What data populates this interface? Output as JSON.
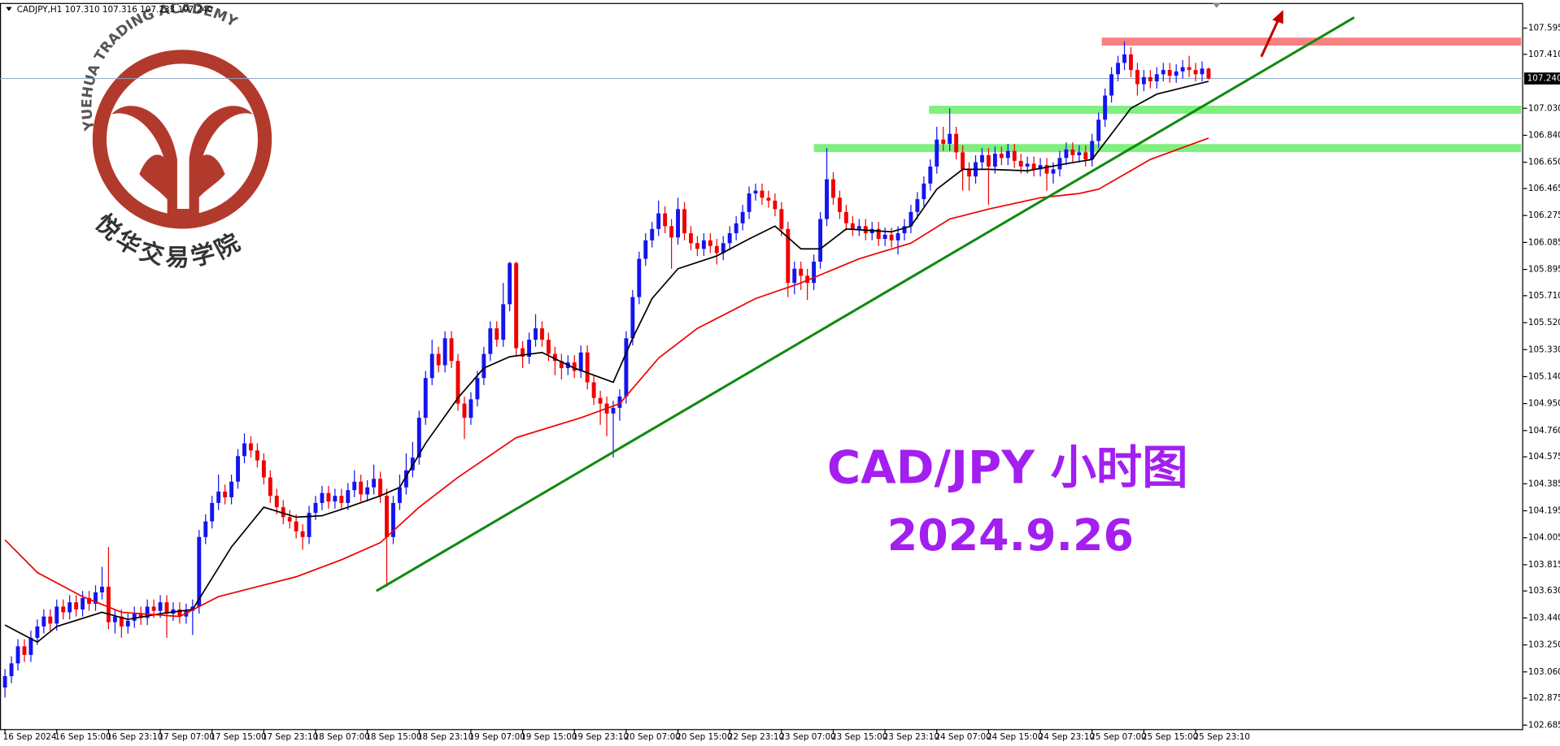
{
  "chart_data": {
    "type": "candlestick",
    "header": "CADJPY,H1  107.310 107.316 107.233 107.240",
    "watermark_en": "YUEHUA TRADING ACADEMY",
    "watermark_cn": "悦华交易学院",
    "annotations": [
      "CAD/JPY 小时图",
      "2024.9.26"
    ],
    "annotation_color": "#a31ff0",
    "up_color": "#1414f0",
    "down_color": "#f00000",
    "categories": [
      "16 Sep 2024",
      null,
      null,
      null,
      null,
      null,
      null,
      null,
      "16 Sep 15:00",
      null,
      null,
      null,
      null,
      null,
      null,
      null,
      "16 Sep 23:10",
      null,
      null,
      null,
      null,
      null,
      null,
      null,
      "17 Sep 07:00",
      null,
      null,
      null,
      null,
      null,
      null,
      null,
      "17 Sep 15:00",
      null,
      null,
      null,
      null,
      null,
      null,
      null,
      "17 Sep 23:10",
      null,
      null,
      null,
      null,
      null,
      null,
      null,
      "18 Sep 07:00",
      null,
      null,
      null,
      null,
      null,
      null,
      null,
      "18 Sep 15:00",
      null,
      null,
      null,
      null,
      null,
      null,
      null,
      "18 Sep 23:10",
      null,
      null,
      null,
      null,
      null,
      null,
      null,
      "19 Sep 07:00",
      null,
      null,
      null,
      null,
      null,
      null,
      null,
      "19 Sep 15:00",
      null,
      null,
      null,
      null,
      null,
      null,
      null,
      "19 Sep 23:10",
      null,
      null,
      null,
      null,
      null,
      null,
      null,
      "20 Sep 07:00",
      null,
      null,
      null,
      null,
      null,
      null,
      null,
      "20 Sep 15:00",
      null,
      null,
      null,
      null,
      null,
      null,
      null,
      "22 Sep 23:10",
      null,
      null,
      null,
      null,
      null,
      null,
      null,
      "23 Sep 07:00",
      null,
      null,
      null,
      null,
      null,
      null,
      null,
      "23 Sep 15:00",
      null,
      null,
      null,
      null,
      null,
      null,
      null,
      "23 Sep 23:10",
      null,
      null,
      null,
      null,
      null,
      null,
      null,
      "24 Sep 07:00",
      null,
      null,
      null,
      null,
      null,
      null,
      null,
      "24 Sep 15:00",
      null,
      null,
      null,
      null,
      null,
      null,
      null,
      "24 Sep 23:10",
      null,
      null,
      null,
      null,
      null,
      null,
      null,
      "25 Sep 07:00",
      null,
      null,
      null,
      null,
      null,
      null,
      null,
      "25 Sep 15:00",
      null,
      null,
      null,
      null,
      null,
      null,
      null,
      "25 Sep 23:10",
      null,
      null
    ],
    "open": [
      102.95,
      103.03,
      103.12,
      103.24,
      103.18,
      103.3,
      103.38,
      103.45,
      103.4,
      103.52,
      103.48,
      103.55,
      103.5,
      103.58,
      103.54,
      103.62,
      103.66,
      103.41,
      103.45,
      103.38,
      103.42,
      103.47,
      103.44,
      103.52,
      103.49,
      103.55,
      103.47,
      103.5,
      103.45,
      103.49,
      103.52,
      104.01,
      104.12,
      104.25,
      104.33,
      104.29,
      104.4,
      104.58,
      104.67,
      104.62,
      104.55,
      104.43,
      104.3,
      104.22,
      104.15,
      104.12,
      104.05,
      104.01,
      104.18,
      104.25,
      104.32,
      104.26,
      104.3,
      104.25,
      104.34,
      104.4,
      104.31,
      104.36,
      104.42,
      104.3,
      104.01,
      104.25,
      104.36,
      104.48,
      104.57,
      104.85,
      105.13,
      105.3,
      105.22,
      105.41,
      105.25,
      104.95,
      104.85,
      104.98,
      105.13,
      105.3,
      105.48,
      105.4,
      105.65,
      105.94,
      105.34,
      105.28,
      105.4,
      105.48,
      105.4,
      105.3,
      105.25,
      105.2,
      105.24,
      105.18,
      105.31,
      105.1,
      104.99,
      104.95,
      104.88,
      104.92,
      105.0,
      105.41,
      105.7,
      105.97,
      106.1,
      106.18,
      106.29,
      106.2,
      106.12,
      106.32,
      106.15,
      106.08,
      106.04,
      106.1,
      106.06,
      106.01,
      106.08,
      106.15,
      106.22,
      106.3,
      106.43,
      106.45,
      106.4,
      106.38,
      106.32,
      106.18,
      105.8,
      105.9,
      105.85,
      105.8,
      105.95,
      106.25,
      106.53,
      106.4,
      106.3,
      106.22,
      106.18,
      106.2,
      106.15,
      106.18,
      106.11,
      106.14,
      106.1,
      106.15,
      106.2,
      106.3,
      106.39,
      106.5,
      106.62,
      106.81,
      106.78,
      106.85,
      106.72,
      106.6,
      106.55,
      106.65,
      106.7,
      106.62,
      106.71,
      106.68,
      106.73,
      106.66,
      106.62,
      106.64,
      106.6,
      106.63,
      106.57,
      106.6,
      106.68,
      106.74,
      106.7,
      106.72,
      106.67,
      106.8,
      106.95,
      107.12,
      107.27,
      107.35,
      107.41,
      107.3,
      107.2,
      107.25,
      107.22,
      107.27,
      107.3,
      107.26,
      107.29,
      107.32,
      107.3,
      107.27,
      107.31
    ],
    "high": [
      103.08,
      103.17,
      103.29,
      103.29,
      103.35,
      103.43,
      103.5,
      103.5,
      103.57,
      103.57,
      103.6,
      103.6,
      103.63,
      103.63,
      103.67,
      103.8,
      103.94,
      103.5,
      103.5,
      103.47,
      103.52,
      103.52,
      103.57,
      103.57,
      103.6,
      103.6,
      103.55,
      103.55,
      103.54,
      103.57,
      104.06,
      104.17,
      104.3,
      104.45,
      104.38,
      104.45,
      104.63,
      104.74,
      104.72,
      104.67,
      104.6,
      104.48,
      104.35,
      104.27,
      104.2,
      104.17,
      104.1,
      104.23,
      104.3,
      104.37,
      104.37,
      104.35,
      104.35,
      104.39,
      104.48,
      104.45,
      104.41,
      104.52,
      104.47,
      104.35,
      104.3,
      104.45,
      104.6,
      104.68,
      104.9,
      105.18,
      105.4,
      105.35,
      105.46,
      105.46,
      105.3,
      105.0,
      105.03,
      105.18,
      105.35,
      105.53,
      105.53,
      105.8,
      105.95,
      105.95,
      105.39,
      105.45,
      105.58,
      105.53,
      105.45,
      105.35,
      105.3,
      105.29,
      105.29,
      105.36,
      105.36,
      105.15,
      105.04,
      105.0,
      104.97,
      105.05,
      105.46,
      105.75,
      106.02,
      106.15,
      106.23,
      106.38,
      106.34,
      106.25,
      106.4,
      106.37,
      106.2,
      106.13,
      106.15,
      106.15,
      106.11,
      106.13,
      106.2,
      106.27,
      106.35,
      106.48,
      106.5,
      106.5,
      106.45,
      106.43,
      106.37,
      106.23,
      105.95,
      105.95,
      105.9,
      106.0,
      106.3,
      106.75,
      106.58,
      106.45,
      106.35,
      106.27,
      106.25,
      106.25,
      106.23,
      106.23,
      106.19,
      106.19,
      106.2,
      106.25,
      106.35,
      106.44,
      106.55,
      106.67,
      106.9,
      106.9,
      107.03,
      106.9,
      106.77,
      106.65,
      106.7,
      106.75,
      106.75,
      106.76,
      106.76,
      106.78,
      106.78,
      106.71,
      106.69,
      106.69,
      106.68,
      106.68,
      106.65,
      106.73,
      106.79,
      106.79,
      106.77,
      106.77,
      106.85,
      107.0,
      107.17,
      107.32,
      107.4,
      107.5,
      107.46,
      107.35,
      107.3,
      107.3,
      107.32,
      107.35,
      107.35,
      107.34,
      107.37,
      107.4,
      107.35,
      107.36,
      107.316
    ],
    "low": [
      102.88,
      102.98,
      103.07,
      103.13,
      103.13,
      103.25,
      103.33,
      103.35,
      103.35,
      103.43,
      103.43,
      103.45,
      103.45,
      103.49,
      103.49,
      103.57,
      103.36,
      103.33,
      103.3,
      103.33,
      103.37,
      103.39,
      103.39,
      103.44,
      103.44,
      103.3,
      103.42,
      103.4,
      103.4,
      103.32,
      103.47,
      103.96,
      104.07,
      104.2,
      104.24,
      104.24,
      104.35,
      104.53,
      104.57,
      104.5,
      104.38,
      104.25,
      104.17,
      104.1,
      104.07,
      104.0,
      103.92,
      103.96,
      104.13,
      104.2,
      104.21,
      104.21,
      104.2,
      104.2,
      104.29,
      104.26,
      104.26,
      104.31,
      104.25,
      103.66,
      103.96,
      104.2,
      104.31,
      104.43,
      104.52,
      104.8,
      105.08,
      105.17,
      105.17,
      105.2,
      104.9,
      104.7,
      104.8,
      104.93,
      105.08,
      105.25,
      105.35,
      105.35,
      105.6,
      105.29,
      105.2,
      105.23,
      105.35,
      105.35,
      105.25,
      105.15,
      105.12,
      105.15,
      105.13,
      105.13,
      105.05,
      104.94,
      104.8,
      104.72,
      104.57,
      104.83,
      104.95,
      105.36,
      105.65,
      105.92,
      106.05,
      106.13,
      106.15,
      105.9,
      106.07,
      106.1,
      106.03,
      105.99,
      105.99,
      106.01,
      105.93,
      105.96,
      106.03,
      106.1,
      106.17,
      106.25,
      106.38,
      106.35,
      106.33,
      106.27,
      106.13,
      105.7,
      105.72,
      105.75,
      105.68,
      105.75,
      105.9,
      106.2,
      106.35,
      106.25,
      106.17,
      106.13,
      106.13,
      106.1,
      106.1,
      106.06,
      106.06,
      106.05,
      106.0,
      106.1,
      106.15,
      106.25,
      106.34,
      106.45,
      106.57,
      106.73,
      106.73,
      106.67,
      106.45,
      106.45,
      106.5,
      106.6,
      106.35,
      106.57,
      106.63,
      106.63,
      106.61,
      106.57,
      106.57,
      106.55,
      106.55,
      106.45,
      106.5,
      106.55,
      106.63,
      106.65,
      106.65,
      106.62,
      106.62,
      106.75,
      106.9,
      107.07,
      107.22,
      107.3,
      107.25,
      107.12,
      107.15,
      107.17,
      107.17,
      107.22,
      107.21,
      107.21,
      107.24,
      107.25,
      107.22,
      107.22,
      107.233
    ],
    "close": [
      103.03,
      103.12,
      103.24,
      103.18,
      103.3,
      103.38,
      103.45,
      103.4,
      103.52,
      103.48,
      103.55,
      103.5,
      103.58,
      103.54,
      103.62,
      103.66,
      103.41,
      103.45,
      103.38,
      103.42,
      103.47,
      103.44,
      103.52,
      103.49,
      103.55,
      103.47,
      103.5,
      103.45,
      103.49,
      103.52,
      104.01,
      104.12,
      104.25,
      104.33,
      104.29,
      104.4,
      104.58,
      104.67,
      104.62,
      104.55,
      104.43,
      104.3,
      104.22,
      104.15,
      104.12,
      104.05,
      104.01,
      104.18,
      104.25,
      104.32,
      104.26,
      104.3,
      104.25,
      104.34,
      104.4,
      104.31,
      104.36,
      104.42,
      104.3,
      104.01,
      104.25,
      104.36,
      104.48,
      104.57,
      104.85,
      105.13,
      105.3,
      105.22,
      105.41,
      105.25,
      104.95,
      104.85,
      104.98,
      105.13,
      105.3,
      105.48,
      105.4,
      105.65,
      105.94,
      105.34,
      105.28,
      105.4,
      105.48,
      105.4,
      105.3,
      105.25,
      105.2,
      105.24,
      105.18,
      105.31,
      105.1,
      104.99,
      104.95,
      104.88,
      104.92,
      105.0,
      105.41,
      105.7,
      105.97,
      106.1,
      106.18,
      106.29,
      106.2,
      106.12,
      106.32,
      106.15,
      106.08,
      106.04,
      106.1,
      106.06,
      106.01,
      106.08,
      106.15,
      106.22,
      106.3,
      106.43,
      106.45,
      106.4,
      106.38,
      106.32,
      106.18,
      105.8,
      105.9,
      105.85,
      105.8,
      105.95,
      106.25,
      106.53,
      106.4,
      106.3,
      106.22,
      106.18,
      106.2,
      106.15,
      106.18,
      106.11,
      106.14,
      106.1,
      106.15,
      106.2,
      106.3,
      106.39,
      106.5,
      106.62,
      106.81,
      106.78,
      106.85,
      106.72,
      106.6,
      106.55,
      106.65,
      106.7,
      106.62,
      106.71,
      106.68,
      106.73,
      106.66,
      106.62,
      106.64,
      106.6,
      106.63,
      106.57,
      106.6,
      106.68,
      106.74,
      106.7,
      106.72,
      106.67,
      106.8,
      106.95,
      107.12,
      107.27,
      107.35,
      107.41,
      107.3,
      107.2,
      107.25,
      107.22,
      107.27,
      107.3,
      107.26,
      107.29,
      107.32,
      107.3,
      107.27,
      107.31,
      107.24
    ],
    "indicators": [
      {
        "color": "#000000",
        "x": [
          0,
          5,
          8,
          15,
          19,
          24,
          29,
          35,
          40,
          45,
          49,
          53,
          58,
          61,
          65,
          70,
          74,
          78,
          83,
          88,
          94,
          97,
          100,
          104,
          110,
          115,
          119,
          123,
          126,
          130,
          137,
          140,
          144,
          148,
          152,
          158,
          164,
          168,
          174,
          178,
          186
        ],
        "values": [
          103.39,
          103.27,
          103.38,
          103.48,
          103.43,
          103.47,
          103.5,
          103.94,
          104.22,
          104.15,
          104.16,
          104.22,
          104.3,
          104.36,
          104.67,
          104.99,
          105.2,
          105.28,
          105.31,
          105.2,
          105.1,
          105.41,
          105.69,
          105.9,
          105.99,
          106.11,
          106.2,
          106.04,
          106.04,
          106.18,
          106.16,
          106.2,
          106.46,
          106.6,
          106.6,
          106.59,
          106.64,
          106.67,
          107.03,
          107.13,
          107.22
        ]
      },
      {
        "color": "#f00000",
        "x": [
          0,
          5,
          12,
          18,
          27,
          33,
          39,
          45,
          52,
          58,
          64,
          70,
          79,
          89,
          95,
          101,
          107,
          116,
          123,
          132,
          140,
          146,
          152,
          160,
          166,
          169,
          177,
          186
        ],
        "values": [
          103.99,
          103.76,
          103.59,
          103.48,
          103.45,
          103.59,
          103.66,
          103.73,
          103.85,
          103.97,
          104.22,
          104.43,
          104.71,
          104.85,
          104.95,
          105.27,
          105.48,
          105.69,
          105.8,
          105.97,
          106.08,
          106.25,
          106.32,
          106.4,
          106.43,
          106.46,
          106.67,
          106.82
        ]
      }
    ],
    "trendline": {
      "color": "#128a12",
      "x": [
        57.4,
        208.5
      ],
      "values": [
        103.63,
        107.67
      ]
    },
    "zones": [
      {
        "color": "#f78080",
        "value": 107.5,
        "x": 169.5
      },
      {
        "color": "#7df07d",
        "value": 107.02,
        "x": 142.8
      },
      {
        "color": "#7df07d",
        "value": 106.75,
        "x": 125
      }
    ],
    "price_line": {
      "value": 107.24,
      "label": "107.240"
    },
    "ylim": [
      102.657,
      107.772
    ],
    "yticks": [
      102.685,
      102.875,
      {
        "value": 103.06,
        "label": "103.060"
      },
      {
        "value": 103.25,
        "label": "103.250"
      },
      {
        "value": 103.44,
        "label": "103.440"
      },
      {
        "value": 103.63,
        "label": "103.630"
      },
      103.815,
      104.005,
      104.195,
      104.385,
      104.575,
      {
        "value": 104.76,
        "label": "104.760"
      },
      {
        "value": 104.95,
        "label": "104.950"
      },
      {
        "value": 105.14,
        "label": "105.140"
      },
      {
        "value": 105.33,
        "label": "105.330"
      },
      {
        "value": 105.52,
        "label": "105.520"
      },
      {
        "value": 105.71,
        "label": "105.710"
      },
      105.895,
      106.085,
      106.275,
      106.465,
      {
        "value": 106.65,
        "label": "106.650"
      },
      {
        "value": 106.84,
        "label": "106.840"
      },
      {
        "value": 107.03,
        "label": "107.030"
      },
      {
        "value": 107.41,
        "label": "107.410"
      },
      107.595
    ]
  }
}
